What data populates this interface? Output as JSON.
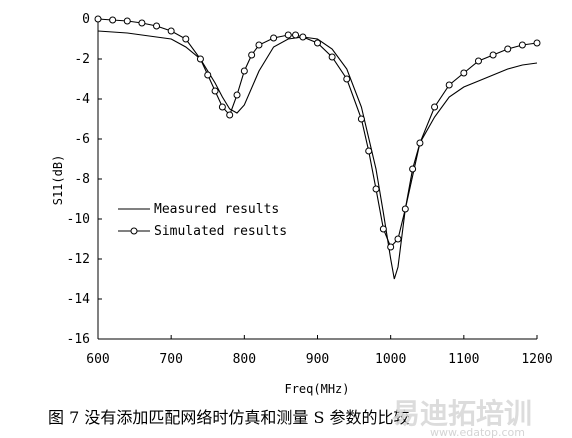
{
  "chart_data": {
    "type": "line",
    "xlabel": "Freq(MHz)",
    "ylabel": "S11(dB)",
    "xlim": [
      600,
      1200
    ],
    "ylim": [
      -16,
      0
    ],
    "x_ticks": [
      600,
      700,
      800,
      900,
      1000,
      1100,
      1200
    ],
    "y_ticks": [
      0,
      -2,
      -4,
      -6,
      -8,
      -10,
      -12,
      -14,
      -16
    ],
    "x_tick_labels": [
      "600",
      "700",
      "800",
      "900",
      "1000",
      "1100",
      "1200"
    ],
    "y_tick_labels": [
      "0",
      "-2",
      "-4",
      "-6",
      "-8",
      "-10",
      "-12",
      "-14",
      "-16"
    ],
    "grid": false,
    "legend_position": "center-left",
    "series": [
      {
        "name": "Measured results",
        "marker": "none",
        "color": "#000000",
        "x": [
          600,
          640,
          680,
          700,
          720,
          740,
          760,
          770,
          780,
          790,
          800,
          820,
          840,
          860,
          880,
          900,
          920,
          940,
          960,
          980,
          990,
          1000,
          1005,
          1010,
          1020,
          1040,
          1060,
          1080,
          1100,
          1120,
          1140,
          1160,
          1180,
          1200
        ],
        "y": [
          -0.6,
          -0.7,
          -0.9,
          -1.0,
          -1.4,
          -2.0,
          -3.2,
          -3.9,
          -4.5,
          -4.7,
          -4.3,
          -2.6,
          -1.4,
          -1.0,
          -0.9,
          -1.0,
          -1.5,
          -2.5,
          -4.4,
          -7.5,
          -9.7,
          -12.0,
          -13.0,
          -12.4,
          -9.5,
          -6.2,
          -4.9,
          -3.9,
          -3.4,
          -3.1,
          -2.8,
          -2.5,
          -2.3,
          -2.2
        ]
      },
      {
        "name": "Simulated results",
        "marker": "circle",
        "color": "#000000",
        "x": [
          600,
          620,
          640,
          660,
          680,
          700,
          720,
          740,
          750,
          760,
          770,
          780,
          790,
          800,
          810,
          820,
          840,
          860,
          870,
          880,
          900,
          920,
          940,
          960,
          970,
          980,
          990,
          1000,
          1010,
          1020,
          1030,
          1040,
          1060,
          1080,
          1100,
          1120,
          1140,
          1160,
          1180,
          1200
        ],
        "y": [
          0.0,
          -0.05,
          -0.1,
          -0.2,
          -0.35,
          -0.6,
          -1.0,
          -2.0,
          -2.8,
          -3.6,
          -4.4,
          -4.8,
          -3.8,
          -2.6,
          -1.8,
          -1.3,
          -0.95,
          -0.8,
          -0.8,
          -0.9,
          -1.2,
          -1.9,
          -3.0,
          -5.0,
          -6.6,
          -8.5,
          -10.5,
          -11.4,
          -11.0,
          -9.5,
          -7.5,
          -6.2,
          -4.4,
          -3.3,
          -2.7,
          -2.1,
          -1.8,
          -1.5,
          -1.3,
          -1.2
        ]
      }
    ]
  },
  "caption": "图 7  没有添加匹配网络时仿真和测量 S 参数的比较",
  "watermark": {
    "text": "易迪拓培训",
    "url": "www.edatop.com"
  }
}
